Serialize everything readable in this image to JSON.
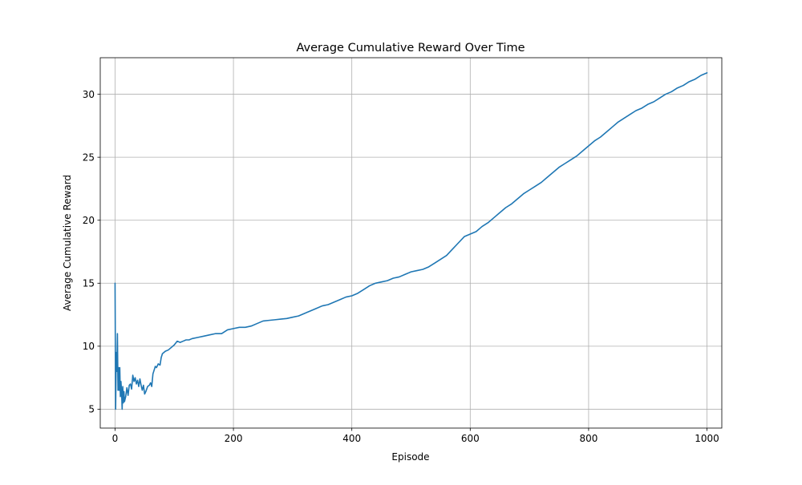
{
  "chart_data": {
    "type": "line",
    "title": "Average Cumulative Reward Over Time",
    "xlabel": "Episode",
    "ylabel": "Average Cumulative Reward",
    "xlim": [
      -25,
      1025
    ],
    "ylim": [
      3.5,
      32.9
    ],
    "xticks": [
      0,
      200,
      400,
      600,
      800,
      1000
    ],
    "yticks": [
      5,
      10,
      15,
      20,
      25,
      30
    ],
    "grid": true,
    "legend": "none",
    "colors": {
      "line": "#1f77b4",
      "grid": "#b0b0b0",
      "axes": "#000000"
    },
    "series": [
      {
        "x": [
          0,
          1,
          2,
          3,
          4,
          5,
          6,
          7,
          8,
          9,
          10,
          11,
          12,
          13,
          14,
          15,
          16,
          18,
          20,
          22,
          24,
          26,
          28,
          30,
          32,
          34,
          36,
          38,
          40,
          42,
          44,
          46,
          48,
          50,
          52,
          55,
          58,
          60,
          62,
          64,
          66,
          68,
          70,
          73,
          76,
          78,
          80,
          85,
          90,
          95,
          100,
          105,
          110,
          115,
          120,
          125,
          130,
          140,
          150,
          160,
          170,
          180,
          190,
          200,
          210,
          220,
          230,
          240,
          250,
          260,
          270,
          280,
          290,
          300,
          310,
          320,
          330,
          340,
          350,
          360,
          370,
          380,
          390,
          400,
          410,
          420,
          430,
          440,
          450,
          460,
          470,
          480,
          490,
          500,
          510,
          520,
          530,
          540,
          550,
          560,
          570,
          580,
          590,
          600,
          610,
          620,
          630,
          640,
          650,
          660,
          670,
          680,
          690,
          700,
          710,
          720,
          730,
          740,
          750,
          760,
          770,
          780,
          790,
          800,
          810,
          820,
          830,
          840,
          850,
          860,
          870,
          880,
          890,
          900,
          910,
          920,
          930,
          940,
          950,
          960,
          970,
          980,
          990,
          1000
        ],
        "y": [
          15.0,
          5.0,
          9.5,
          8.0,
          11.0,
          6.5,
          8.3,
          6.5,
          8.3,
          6.0,
          7.2,
          6.4,
          5.0,
          6.8,
          5.5,
          6.4,
          5.6,
          6.0,
          6.7,
          6.1,
          6.9,
          7.0,
          6.6,
          7.7,
          7.2,
          7.5,
          7.0,
          7.3,
          6.8,
          7.4,
          6.9,
          6.5,
          6.9,
          6.2,
          6.4,
          6.8,
          6.9,
          7.1,
          6.8,
          7.8,
          8.1,
          8.4,
          8.3,
          8.6,
          8.5,
          9.1,
          9.4,
          9.6,
          9.7,
          9.9,
          10.1,
          10.4,
          10.3,
          10.4,
          10.5,
          10.5,
          10.6,
          10.7,
          10.8,
          10.9,
          11.0,
          11.0,
          11.3,
          11.4,
          11.5,
          11.5,
          11.6,
          11.8,
          12.0,
          12.05,
          12.1,
          12.15,
          12.2,
          12.3,
          12.4,
          12.6,
          12.8,
          13.0,
          13.2,
          13.3,
          13.5,
          13.7,
          13.9,
          14.0,
          14.2,
          14.5,
          14.8,
          15.0,
          15.1,
          15.2,
          15.4,
          15.5,
          15.7,
          15.9,
          16.0,
          16.1,
          16.3,
          16.6,
          16.9,
          17.2,
          17.7,
          18.2,
          18.7,
          18.9,
          19.1,
          19.5,
          19.8,
          20.2,
          20.6,
          21.0,
          21.3,
          21.7,
          22.1,
          22.4,
          22.7,
          23.0,
          23.4,
          23.8,
          24.2,
          24.5,
          24.8,
          25.1,
          25.5,
          25.9,
          26.3,
          26.6,
          27.0,
          27.4,
          27.8,
          28.1,
          28.4,
          28.7,
          28.9,
          29.2,
          29.4,
          29.7,
          30.0,
          30.2,
          30.5,
          30.7,
          31.0,
          31.2,
          31.5,
          31.7
        ]
      }
    ]
  }
}
